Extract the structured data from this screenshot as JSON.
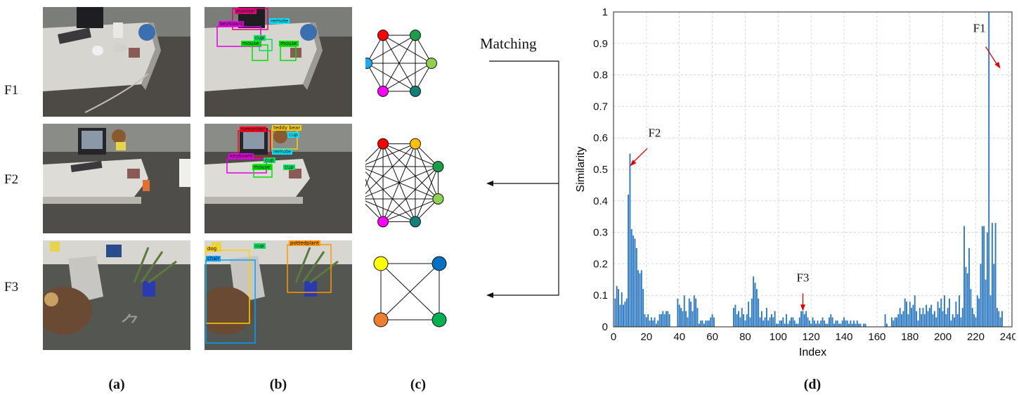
{
  "rows": [
    {
      "label": "F1",
      "detections": [
        {
          "name": "monitor",
          "color": "#e6007e"
        },
        {
          "name": "keyboard",
          "color": "#e000e0"
        },
        {
          "name": "remote",
          "color": "#00e5ff"
        },
        {
          "name": "cup",
          "color": "#00e060"
        },
        {
          "name": "mouse",
          "color": "#00e000"
        },
        {
          "name": "mouse",
          "color": "#00e000"
        }
      ]
    },
    {
      "label": "F2",
      "detections": [
        {
          "name": "tvmonitor",
          "color": "#ff0022"
        },
        {
          "name": "teddy bear",
          "color": "#ffd000"
        },
        {
          "name": "cup",
          "color": "#00e5ff"
        },
        {
          "name": "remote",
          "color": "#00e5ff"
        },
        {
          "name": "keyboard",
          "color": "#e000e0"
        },
        {
          "name": "cup",
          "color": "#00e060"
        },
        {
          "name": "mouse",
          "color": "#00e000"
        },
        {
          "name": "cup",
          "color": "#00e060"
        }
      ]
    },
    {
      "label": "F3",
      "detections": [
        {
          "name": "dog",
          "color": "#ffd000"
        },
        {
          "name": "chair",
          "color": "#00a0ff"
        },
        {
          "name": "cup",
          "color": "#00e060"
        },
        {
          "name": "pottedplant",
          "color": "#ff9900"
        }
      ]
    }
  ],
  "panel_labels": [
    "(a)",
    "(b)",
    "(c)",
    "(d)"
  ],
  "matching_label": "Matching",
  "graphs": [
    {
      "nodes": [
        "#ff0000",
        "#1a9e4a",
        "#8fd14f",
        "#127f7a",
        "#ff00ff",
        "#1ea8f0"
      ]
    },
    {
      "nodes": [
        "#ff0000",
        "#ffc000",
        "#1a9e4a",
        "#8fd14f",
        "#127f7a",
        "#ff00ff",
        "#6a329f",
        "#1ea8f0"
      ]
    },
    {
      "nodes": [
        "#ffff00",
        "#0070c0",
        "#00b050",
        "#ed7d31"
      ]
    }
  ],
  "chart_data": {
    "type": "bar",
    "xlabel": "Index",
    "ylabel": "Similarity",
    "xlim": [
      0,
      242
    ],
    "ylim": [
      0,
      1
    ],
    "xticks": [
      0,
      20,
      40,
      60,
      80,
      100,
      120,
      140,
      160,
      180,
      200,
      220,
      240
    ],
    "yticks": [
      0,
      0.1,
      0.2,
      0.3,
      0.4,
      0.5,
      0.6,
      0.7,
      0.8,
      0.9,
      1
    ],
    "ytick_labels": [
      "0",
      "0.1",
      "0.2",
      "0.3",
      "0.4",
      "0.5",
      "0.6",
      "0.7",
      "0.8",
      "0.9",
      "1"
    ],
    "grid": true,
    "bar_color": "#2a78c0",
    "series": [
      {
        "x_start": 1,
        "values": [
          0.09,
          0.13,
          0.12,
          0.07,
          0.11,
          0.07,
          0.08,
          0.09,
          0.42,
          0.55,
          0.31,
          0.29,
          0.28,
          0.25,
          0.18,
          0.17,
          0.18,
          0.12,
          0.04,
          0.03,
          0.04,
          0.02,
          0.03,
          0.02,
          0.03,
          0.01,
          0.02,
          0.04,
          0.04,
          0.05,
          0.04,
          0.05,
          0.05,
          0.04,
          0,
          0,
          0,
          0,
          0.09,
          0.07,
          0.06,
          0.05,
          0.1,
          0.05,
          0.03,
          0.09,
          0.08,
          0.05,
          0.1,
          0.09,
          0.06,
          0.01,
          0.02,
          0.02,
          0.01,
          0.02,
          0.02,
          0.02,
          0.03,
          0.04,
          0.03,
          0,
          0,
          0,
          0,
          0,
          0,
          0,
          0,
          0,
          0,
          0,
          0.06,
          0.07,
          0.04,
          0.05,
          0.03,
          0.06,
          0.04,
          0.02,
          0.04,
          0.08,
          0.03,
          0.09,
          0.16,
          0.14,
          0.12,
          0.09,
          0.03,
          0.05,
          0.02,
          0.03,
          0.06,
          0.02,
          0.03,
          0.04,
          0.03,
          0.05,
          0.01,
          0.01,
          0.02,
          0.02,
          0.03,
          0.01,
          0.04,
          0.01,
          0.02,
          0.03,
          0.03,
          0.02,
          0.01,
          0.01,
          0.03,
          0.05,
          0.05,
          0.04,
          0.05,
          0.03,
          0.02,
          0.01,
          0.03,
          0.02,
          0.01,
          0.02,
          0.01,
          0.02,
          0.03,
          0.02,
          0.01,
          0.01,
          0.03,
          0.04,
          0.03,
          0.01,
          0.02,
          0.02,
          0.01,
          0.01,
          0.02,
          0.03,
          0.02,
          0.02,
          0.01,
          0.02,
          0.01,
          0.02,
          0.01,
          0.02,
          0.01,
          0.01,
          0,
          0.01,
          0.01,
          0,
          0,
          0,
          0,
          0,
          0,
          0,
          0,
          0,
          0,
          0,
          0.04,
          0.01,
          0,
          0,
          0.03,
          0.02,
          0.03,
          0.03,
          0.04,
          0.06,
          0.04,
          0.05,
          0.09,
          0.08,
          0.04,
          0.08,
          0.06,
          0.07,
          0.1,
          0.05,
          0.02,
          0.06,
          0.04,
          0.06,
          0.04,
          0.07,
          0.05,
          0.06,
          0.07,
          0.04,
          0.05,
          0.03,
          0.08,
          0.06,
          0.09,
          0.05,
          0.1,
          0.04,
          0.06,
          0.09,
          0.02,
          0.04,
          0.03,
          0.08,
          0.04,
          0.1,
          0.03,
          0.06,
          0.32,
          0.19,
          0.17,
          0.25,
          0.12,
          0.06,
          0.04,
          0.03,
          0.1,
          0.09,
          0.2,
          0.32,
          0.32,
          0.15,
          0.3,
          1.0,
          0.1,
          0.33,
          0.2,
          0.33,
          0.06,
          0.05,
          0.03,
          0.05
        ]
      }
    ],
    "annotations": [
      {
        "text": "F1",
        "x": 235,
        "y": 0.82
      },
      {
        "text": "F2",
        "x": 10,
        "y": 0.51
      },
      {
        "text": "F3",
        "x": 115,
        "y": 0.05
      }
    ]
  }
}
